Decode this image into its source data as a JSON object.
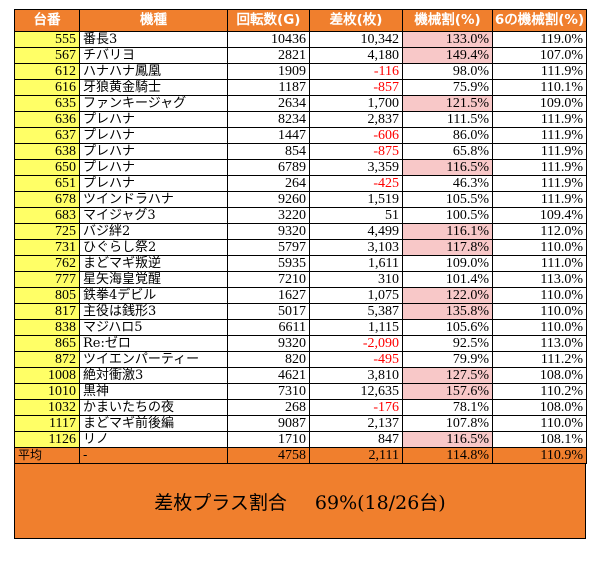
{
  "headers": [
    "台番",
    "機種",
    "回転数(G)",
    "差枚(枚)",
    "機械割(%)",
    "6の機械割(%)"
  ],
  "rows": [
    {
      "id": "555",
      "name": "番長3",
      "spins": "10436",
      "diff": "10,342",
      "neg": false,
      "rate": "133.0%",
      "hi": true,
      "rate6": "119.0%"
    },
    {
      "id": "567",
      "name": "チバリヨ",
      "spins": "2821",
      "diff": "4,180",
      "neg": false,
      "rate": "149.4%",
      "hi": true,
      "rate6": "107.0%"
    },
    {
      "id": "612",
      "name": "ハナハナ鳳凰",
      "spins": "1909",
      "diff": "-116",
      "neg": true,
      "rate": "98.0%",
      "hi": false,
      "rate6": "111.9%"
    },
    {
      "id": "616",
      "name": "牙狼黄金騎士",
      "spins": "1187",
      "diff": "-857",
      "neg": true,
      "rate": "75.9%",
      "hi": false,
      "rate6": "110.1%"
    },
    {
      "id": "635",
      "name": "ファンキージャグ",
      "spins": "2634",
      "diff": "1,700",
      "neg": false,
      "rate": "121.5%",
      "hi": true,
      "rate6": "109.0%"
    },
    {
      "id": "636",
      "name": "プレハナ",
      "spins": "8234",
      "diff": "2,837",
      "neg": false,
      "rate": "111.5%",
      "hi": false,
      "rate6": "111.9%"
    },
    {
      "id": "637",
      "name": "プレハナ",
      "spins": "1447",
      "diff": "-606",
      "neg": true,
      "rate": "86.0%",
      "hi": false,
      "rate6": "111.9%"
    },
    {
      "id": "638",
      "name": "プレハナ",
      "spins": "854",
      "diff": "-875",
      "neg": true,
      "rate": "65.8%",
      "hi": false,
      "rate6": "111.9%"
    },
    {
      "id": "650",
      "name": "プレハナ",
      "spins": "6789",
      "diff": "3,359",
      "neg": false,
      "rate": "116.5%",
      "hi": true,
      "rate6": "111.9%"
    },
    {
      "id": "651",
      "name": "プレハナ",
      "spins": "264",
      "diff": "-425",
      "neg": true,
      "rate": "46.3%",
      "hi": false,
      "rate6": "111.9%"
    },
    {
      "id": "678",
      "name": "ツインドラハナ",
      "spins": "9260",
      "diff": "1,519",
      "neg": false,
      "rate": "105.5%",
      "hi": false,
      "rate6": "111.9%"
    },
    {
      "id": "683",
      "name": "マイジャグ3",
      "spins": "3220",
      "diff": "51",
      "neg": false,
      "rate": "100.5%",
      "hi": false,
      "rate6": "109.4%"
    },
    {
      "id": "725",
      "name": "バジ絆2",
      "spins": "9320",
      "diff": "4,499",
      "neg": false,
      "rate": "116.1%",
      "hi": true,
      "rate6": "112.0%"
    },
    {
      "id": "731",
      "name": "ひぐらし祭2",
      "spins": "5797",
      "diff": "3,103",
      "neg": false,
      "rate": "117.8%",
      "hi": true,
      "rate6": "110.0%"
    },
    {
      "id": "762",
      "name": "まどマギ叛逆",
      "spins": "5935",
      "diff": "1,611",
      "neg": false,
      "rate": "109.0%",
      "hi": false,
      "rate6": "111.0%"
    },
    {
      "id": "777",
      "name": "星矢海皇覚醒",
      "spins": "7210",
      "diff": "310",
      "neg": false,
      "rate": "101.4%",
      "hi": false,
      "rate6": "113.0%"
    },
    {
      "id": "805",
      "name": "鉄拳4デビル",
      "spins": "1627",
      "diff": "1,075",
      "neg": false,
      "rate": "122.0%",
      "hi": true,
      "rate6": "110.0%"
    },
    {
      "id": "817",
      "name": "主役は銭形3",
      "spins": "5017",
      "diff": "5,387",
      "neg": false,
      "rate": "135.8%",
      "hi": true,
      "rate6": "110.0%"
    },
    {
      "id": "838",
      "name": "マジハロ5",
      "spins": "6611",
      "diff": "1,115",
      "neg": false,
      "rate": "105.6%",
      "hi": false,
      "rate6": "110.0%"
    },
    {
      "id": "865",
      "name": "Re:ゼロ",
      "spins": "9320",
      "diff": "-2,090",
      "neg": true,
      "rate": "92.5%",
      "hi": false,
      "rate6": "113.0%"
    },
    {
      "id": "872",
      "name": "ツイエンパーティー",
      "spins": "820",
      "diff": "-495",
      "neg": true,
      "rate": "79.9%",
      "hi": false,
      "rate6": "111.2%"
    },
    {
      "id": "1008",
      "name": "絶対衝激3",
      "spins": "4621",
      "diff": "3,810",
      "neg": false,
      "rate": "127.5%",
      "hi": true,
      "rate6": "108.0%"
    },
    {
      "id": "1010",
      "name": "黒神",
      "spins": "7310",
      "diff": "12,635",
      "neg": false,
      "rate": "157.6%",
      "hi": true,
      "rate6": "110.2%"
    },
    {
      "id": "1032",
      "name": "かまいたちの夜",
      "spins": "268",
      "diff": "-176",
      "neg": true,
      "rate": "78.1%",
      "hi": false,
      "rate6": "108.0%"
    },
    {
      "id": "1117",
      "name": "まどマギ前後編",
      "spins": "9087",
      "diff": "2,137",
      "neg": false,
      "rate": "107.8%",
      "hi": false,
      "rate6": "110.0%"
    },
    {
      "id": "1126",
      "name": "リノ",
      "spins": "1710",
      "diff": "847",
      "neg": false,
      "rate": "116.5%",
      "hi": true,
      "rate6": "108.1%"
    }
  ],
  "average": {
    "label": "平均",
    "name": "-",
    "spins": "4758",
    "diff": "2,111",
    "rate": "114.8%",
    "rate6": "110.9%"
  },
  "summary": {
    "label": "差枚プラス割合",
    "value": "69%(18/26台)"
  },
  "colors": {
    "header": "#f07f2d",
    "id_cell": "#ffff66",
    "highlight": "#f8c8c8",
    "negative": "#ff0000"
  }
}
